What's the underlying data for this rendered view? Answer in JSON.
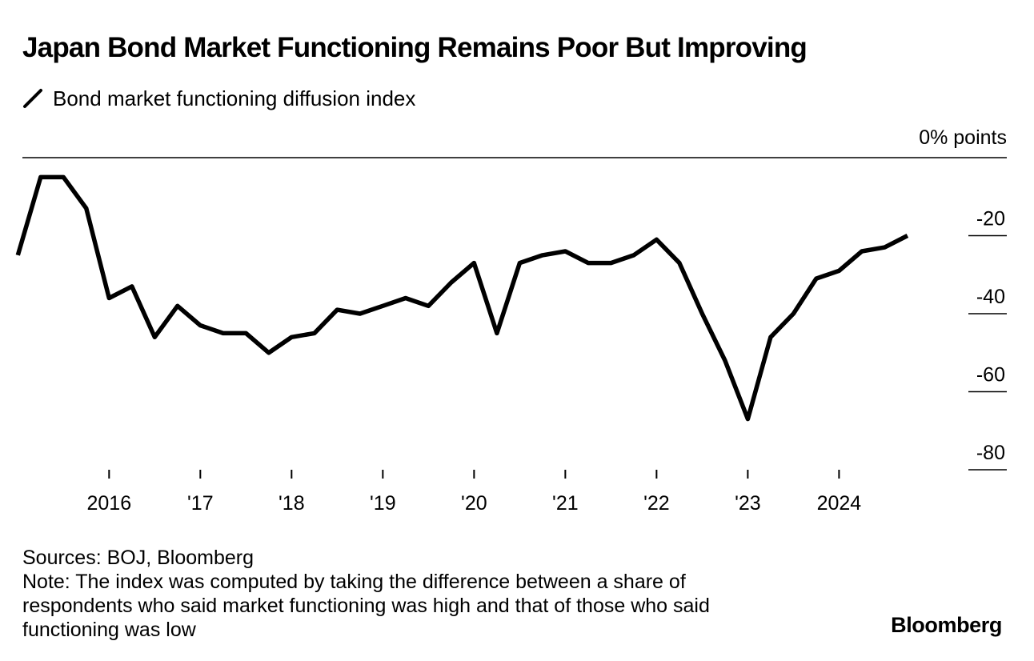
{
  "title": "Japan Bond Market Functioning Remains Poor But Improving",
  "legend_label": "Bond market functioning diffusion index",
  "unit_label": "0% points",
  "sources": "Sources: BOJ, Bloomberg",
  "note": "Note: The index was computed by taking the difference between a share of respondents who said market functioning was high and that of those who said functioning was low",
  "brand": "Bloomberg",
  "colors": {
    "line": "#000000",
    "background": "#ffffff"
  },
  "chart_data": {
    "type": "line",
    "title": "Japan Bond Market Functioning Remains Poor But Improving",
    "ylabel": "% points",
    "xlabel": "",
    "ylim": [
      -80,
      0
    ],
    "xlim": [
      2015.05,
      2025.4
    ],
    "yticks": [
      {
        "value": -20,
        "label": "-20"
      },
      {
        "value": -40,
        "label": "-40"
      },
      {
        "value": -60,
        "label": "-60"
      },
      {
        "value": -80,
        "label": "-80"
      }
    ],
    "xticks": [
      {
        "value": 2016,
        "label": "2016"
      },
      {
        "value": 2017,
        "label": "'17"
      },
      {
        "value": 2018,
        "label": "'18"
      },
      {
        "value": 2019,
        "label": "'19"
      },
      {
        "value": 2020,
        "label": "'20"
      },
      {
        "value": 2021,
        "label": "'21"
      },
      {
        "value": 2022,
        "label": "'22"
      },
      {
        "value": 2023,
        "label": "'23"
      },
      {
        "value": 2024,
        "label": "2024"
      }
    ],
    "series": [
      {
        "name": "Bond market functioning diffusion index",
        "x": [
          2015.0,
          2015.25,
          2015.5,
          2015.75,
          2016.0,
          2016.25,
          2016.5,
          2016.75,
          2017.0,
          2017.25,
          2017.5,
          2017.75,
          2018.0,
          2018.25,
          2018.5,
          2018.75,
          2019.0,
          2019.25,
          2019.5,
          2019.75,
          2020.0,
          2020.25,
          2020.5,
          2020.75,
          2021.0,
          2021.25,
          2021.5,
          2021.75,
          2022.0,
          2022.25,
          2022.5,
          2022.75,
          2023.0,
          2023.25,
          2023.5,
          2023.75,
          2024.0,
          2024.25,
          2024.5,
          2024.75
        ],
        "values": [
          -25,
          -5,
          -5,
          -13,
          -36,
          -33,
          -46,
          -38,
          -43,
          -45,
          -45,
          -50,
          -46,
          -45,
          -39,
          -40,
          -38,
          -36,
          -38,
          -32,
          -27,
          -45,
          -27,
          -25,
          -24,
          -27,
          -27,
          -25,
          -21,
          -27,
          -40,
          -52,
          -67,
          -46,
          -40,
          -31,
          -29,
          -24,
          -23,
          -20
        ]
      }
    ]
  }
}
